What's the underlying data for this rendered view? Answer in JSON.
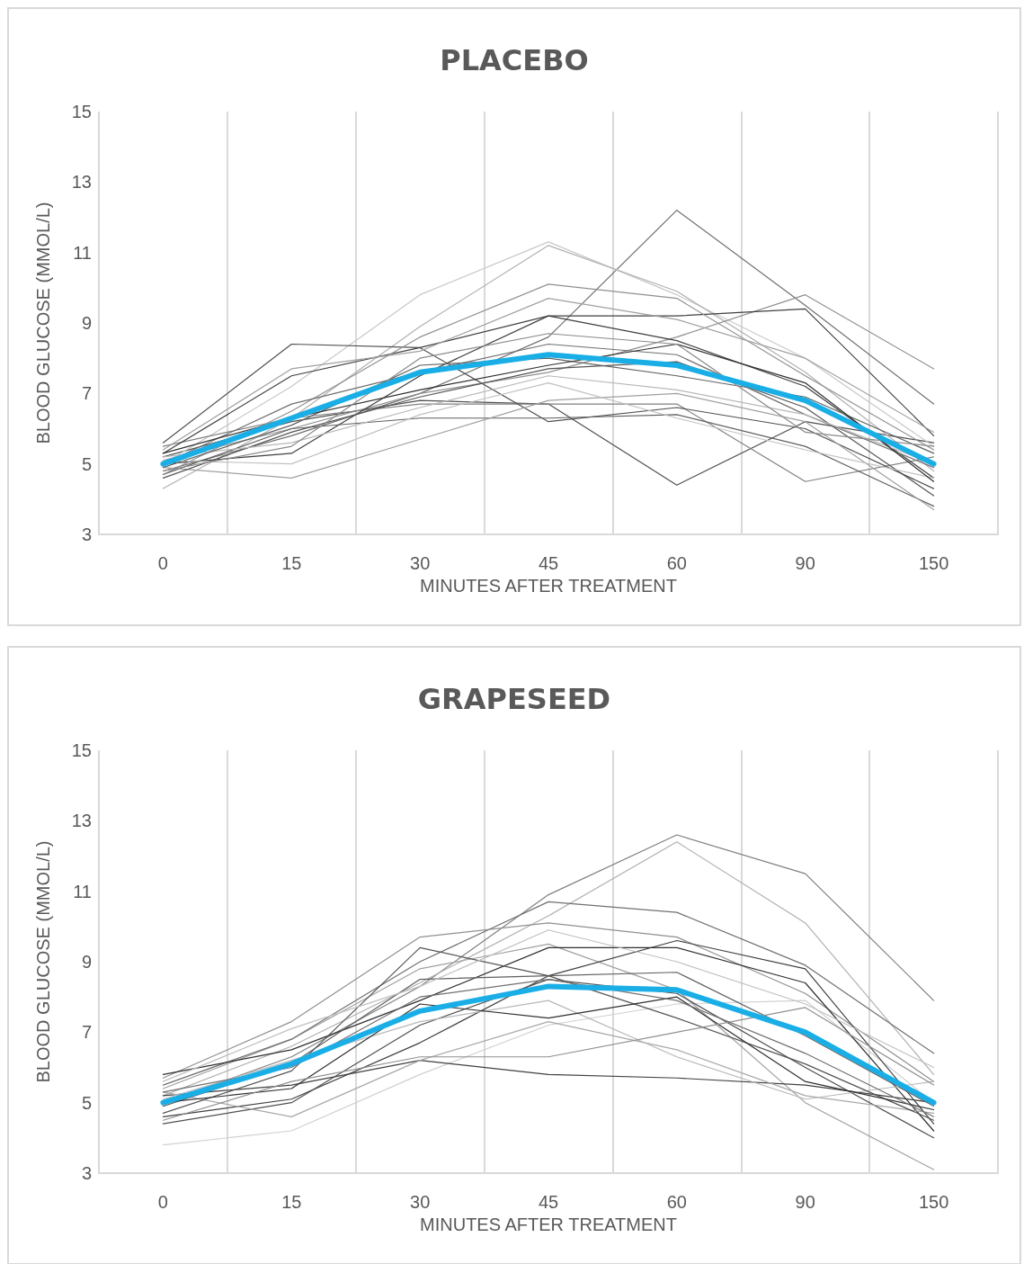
{
  "chart_data": [
    {
      "type": "line",
      "title": "PLACEBO",
      "xlabel": "MINUTES AFTER TREATMENT",
      "ylabel": "BLOOD GLUCOSE (MMOL/L)",
      "categories": [
        "0",
        "15",
        "30",
        "45",
        "60",
        "90",
        "150"
      ],
      "ylim": [
        3,
        15
      ],
      "yticks": [
        3,
        5,
        7,
        9,
        11,
        13,
        15
      ],
      "grid": "x",
      "marker": "none",
      "series": [
        {
          "color": "#707070",
          "values": [
            4.8,
            5.8,
            7.0,
            8.6,
            12.2,
            9.5,
            6.7
          ]
        },
        {
          "color": "#505050",
          "values": [
            5.2,
            6.2,
            6.8,
            6.7,
            4.4,
            6.2,
            5.6
          ]
        },
        {
          "color": "#c8c8c8",
          "values": [
            5.0,
            7.2,
            9.8,
            11.3,
            9.8,
            8.0,
            5.5
          ]
        },
        {
          "color": "#b0b0b0",
          "values": [
            4.3,
            6.3,
            8.9,
            11.2,
            9.9,
            7.6,
            4.8
          ]
        },
        {
          "color": "#808080",
          "values": [
            5.5,
            6.3,
            6.7,
            6.7,
            6.7,
            4.5,
            5.2
          ]
        },
        {
          "color": "#505050",
          "values": [
            5.6,
            8.4,
            8.3,
            6.2,
            6.6,
            6.0,
            4.3
          ]
        },
        {
          "color": "#909090",
          "values": [
            5.1,
            6.0,
            7.0,
            7.6,
            8.6,
            9.8,
            7.7
          ]
        },
        {
          "color": "#404040",
          "values": [
            5.0,
            5.3,
            7.5,
            9.2,
            9.2,
            9.4,
            5.8
          ]
        },
        {
          "color": "#606060",
          "values": [
            4.7,
            6.0,
            6.3,
            6.3,
            6.4,
            5.5,
            3.8
          ]
        },
        {
          "color": "#a0a0a0",
          "values": [
            4.9,
            4.6,
            5.7,
            6.8,
            7.0,
            6.2,
            3.7
          ]
        },
        {
          "color": "#404040",
          "values": [
            5.3,
            7.5,
            8.3,
            9.2,
            8.5,
            7.2,
            4.6
          ]
        },
        {
          "color": "#909090",
          "values": [
            4.7,
            6.5,
            8.6,
            10.1,
            9.7,
            7.5,
            5.4
          ]
        },
        {
          "color": "#707070",
          "values": [
            5.0,
            6.7,
            7.6,
            8.4,
            8.1,
            6.4,
            4.9
          ]
        },
        {
          "color": "#a0a0a0",
          "values": [
            5.4,
            7.7,
            8.2,
            9.7,
            9.1,
            8.0,
            5.9
          ]
        },
        {
          "color": "#555555",
          "values": [
            4.6,
            5.9,
            6.9,
            7.7,
            7.9,
            6.6,
            4.1
          ]
        },
        {
          "color": "#b8b8b8",
          "values": [
            5.2,
            5.6,
            6.6,
            7.5,
            7.1,
            6.4,
            5.0
          ]
        },
        {
          "color": "#606060",
          "values": [
            4.9,
            6.1,
            7.8,
            8.0,
            7.5,
            6.9,
            5.3
          ]
        },
        {
          "color": "#c0c0c0",
          "values": [
            5.1,
            5.0,
            6.4,
            7.3,
            6.3,
            5.4,
            4.6
          ]
        },
        {
          "color": "#303030",
          "values": [
            5.3,
            6.3,
            7.1,
            7.8,
            8.4,
            7.3,
            4.5
          ]
        },
        {
          "color": "#8a8a8a",
          "values": [
            4.8,
            5.5,
            8.0,
            8.7,
            8.4,
            5.9,
            5.5
          ]
        },
        {
          "color": "#1aaee6",
          "values": [
            5.0,
            6.3,
            7.6,
            8.1,
            7.8,
            6.8,
            5.0
          ]
        }
      ]
    },
    {
      "type": "line",
      "title": "GRAPESEED",
      "xlabel": "MINUTES AFTER TREATMENT",
      "ylabel": "BLOOD GLUCOSE (MMOL/L)",
      "categories": [
        "0",
        "15",
        "30",
        "45",
        "60",
        "90",
        "150"
      ],
      "ylim": [
        3,
        15
      ],
      "yticks": [
        3,
        5,
        7,
        9,
        11,
        13,
        15
      ],
      "grid": "x",
      "marker": "none",
      "series": [
        {
          "color": "#808080",
          "values": [
            5.0,
            6.3,
            8.3,
            10.9,
            12.6,
            11.5,
            7.9
          ]
        },
        {
          "color": "#b0b0b0",
          "values": [
            5.2,
            6.6,
            8.4,
            10.3,
            12.4,
            10.1,
            5.8
          ]
        },
        {
          "color": "#d0d0d0",
          "values": [
            3.8,
            4.2,
            5.8,
            7.2,
            7.8,
            7.9,
            5.0
          ]
        },
        {
          "color": "#a0a0a0",
          "values": [
            5.4,
            6.8,
            8.8,
            9.5,
            8.2,
            5.0,
            3.1
          ]
        },
        {
          "color": "#404040",
          "values": [
            5.2,
            5.5,
            6.2,
            5.8,
            5.7,
            5.5,
            5.0
          ]
        },
        {
          "color": "#707070",
          "values": [
            5.5,
            6.8,
            9.0,
            10.7,
            10.4,
            8.9,
            6.4
          ]
        },
        {
          "color": "#909090",
          "values": [
            5.7,
            7.3,
            9.7,
            10.1,
            9.7,
            8.1,
            5.6
          ]
        },
        {
          "color": "#404040",
          "values": [
            4.6,
            5.1,
            6.7,
            8.6,
            9.6,
            8.8,
            4.4
          ]
        },
        {
          "color": "#303030",
          "values": [
            5.8,
            6.5,
            7.9,
            9.4,
            9.4,
            8.4,
            4.2
          ]
        },
        {
          "color": "#505050",
          "values": [
            4.4,
            5.0,
            7.2,
            8.5,
            8.1,
            6.0,
            4.0
          ]
        },
        {
          "color": "#a8a8a8",
          "values": [
            5.3,
            4.6,
            6.2,
            7.3,
            6.5,
            5.2,
            4.7
          ]
        },
        {
          "color": "#606060",
          "values": [
            4.9,
            6.1,
            8.5,
            8.6,
            8.7,
            6.9,
            4.9
          ]
        },
        {
          "color": "#b8b8b8",
          "values": [
            5.1,
            6.2,
            7.3,
            7.9,
            6.3,
            5.1,
            5.6
          ]
        },
        {
          "color": "#555555",
          "values": [
            4.7,
            5.9,
            9.4,
            8.6,
            7.4,
            6.1,
            4.5
          ]
        },
        {
          "color": "#303030",
          "values": [
            5.0,
            5.4,
            7.8,
            7.4,
            8.0,
            5.6,
            4.8
          ]
        },
        {
          "color": "#c0c0c0",
          "values": [
            5.6,
            7.1,
            8.3,
            9.9,
            9.0,
            7.8,
            6.0
          ]
        },
        {
          "color": "#909090",
          "values": [
            4.5,
            5.6,
            6.3,
            6.3,
            7.0,
            7.7,
            5.5
          ]
        },
        {
          "color": "#707070",
          "values": [
            5.3,
            6.0,
            8.0,
            8.5,
            7.9,
            6.4,
            4.6
          ]
        },
        {
          "color": "#1aaee6",
          "values": [
            5.0,
            6.1,
            7.6,
            8.3,
            8.2,
            7.0,
            5.0
          ]
        }
      ]
    }
  ]
}
